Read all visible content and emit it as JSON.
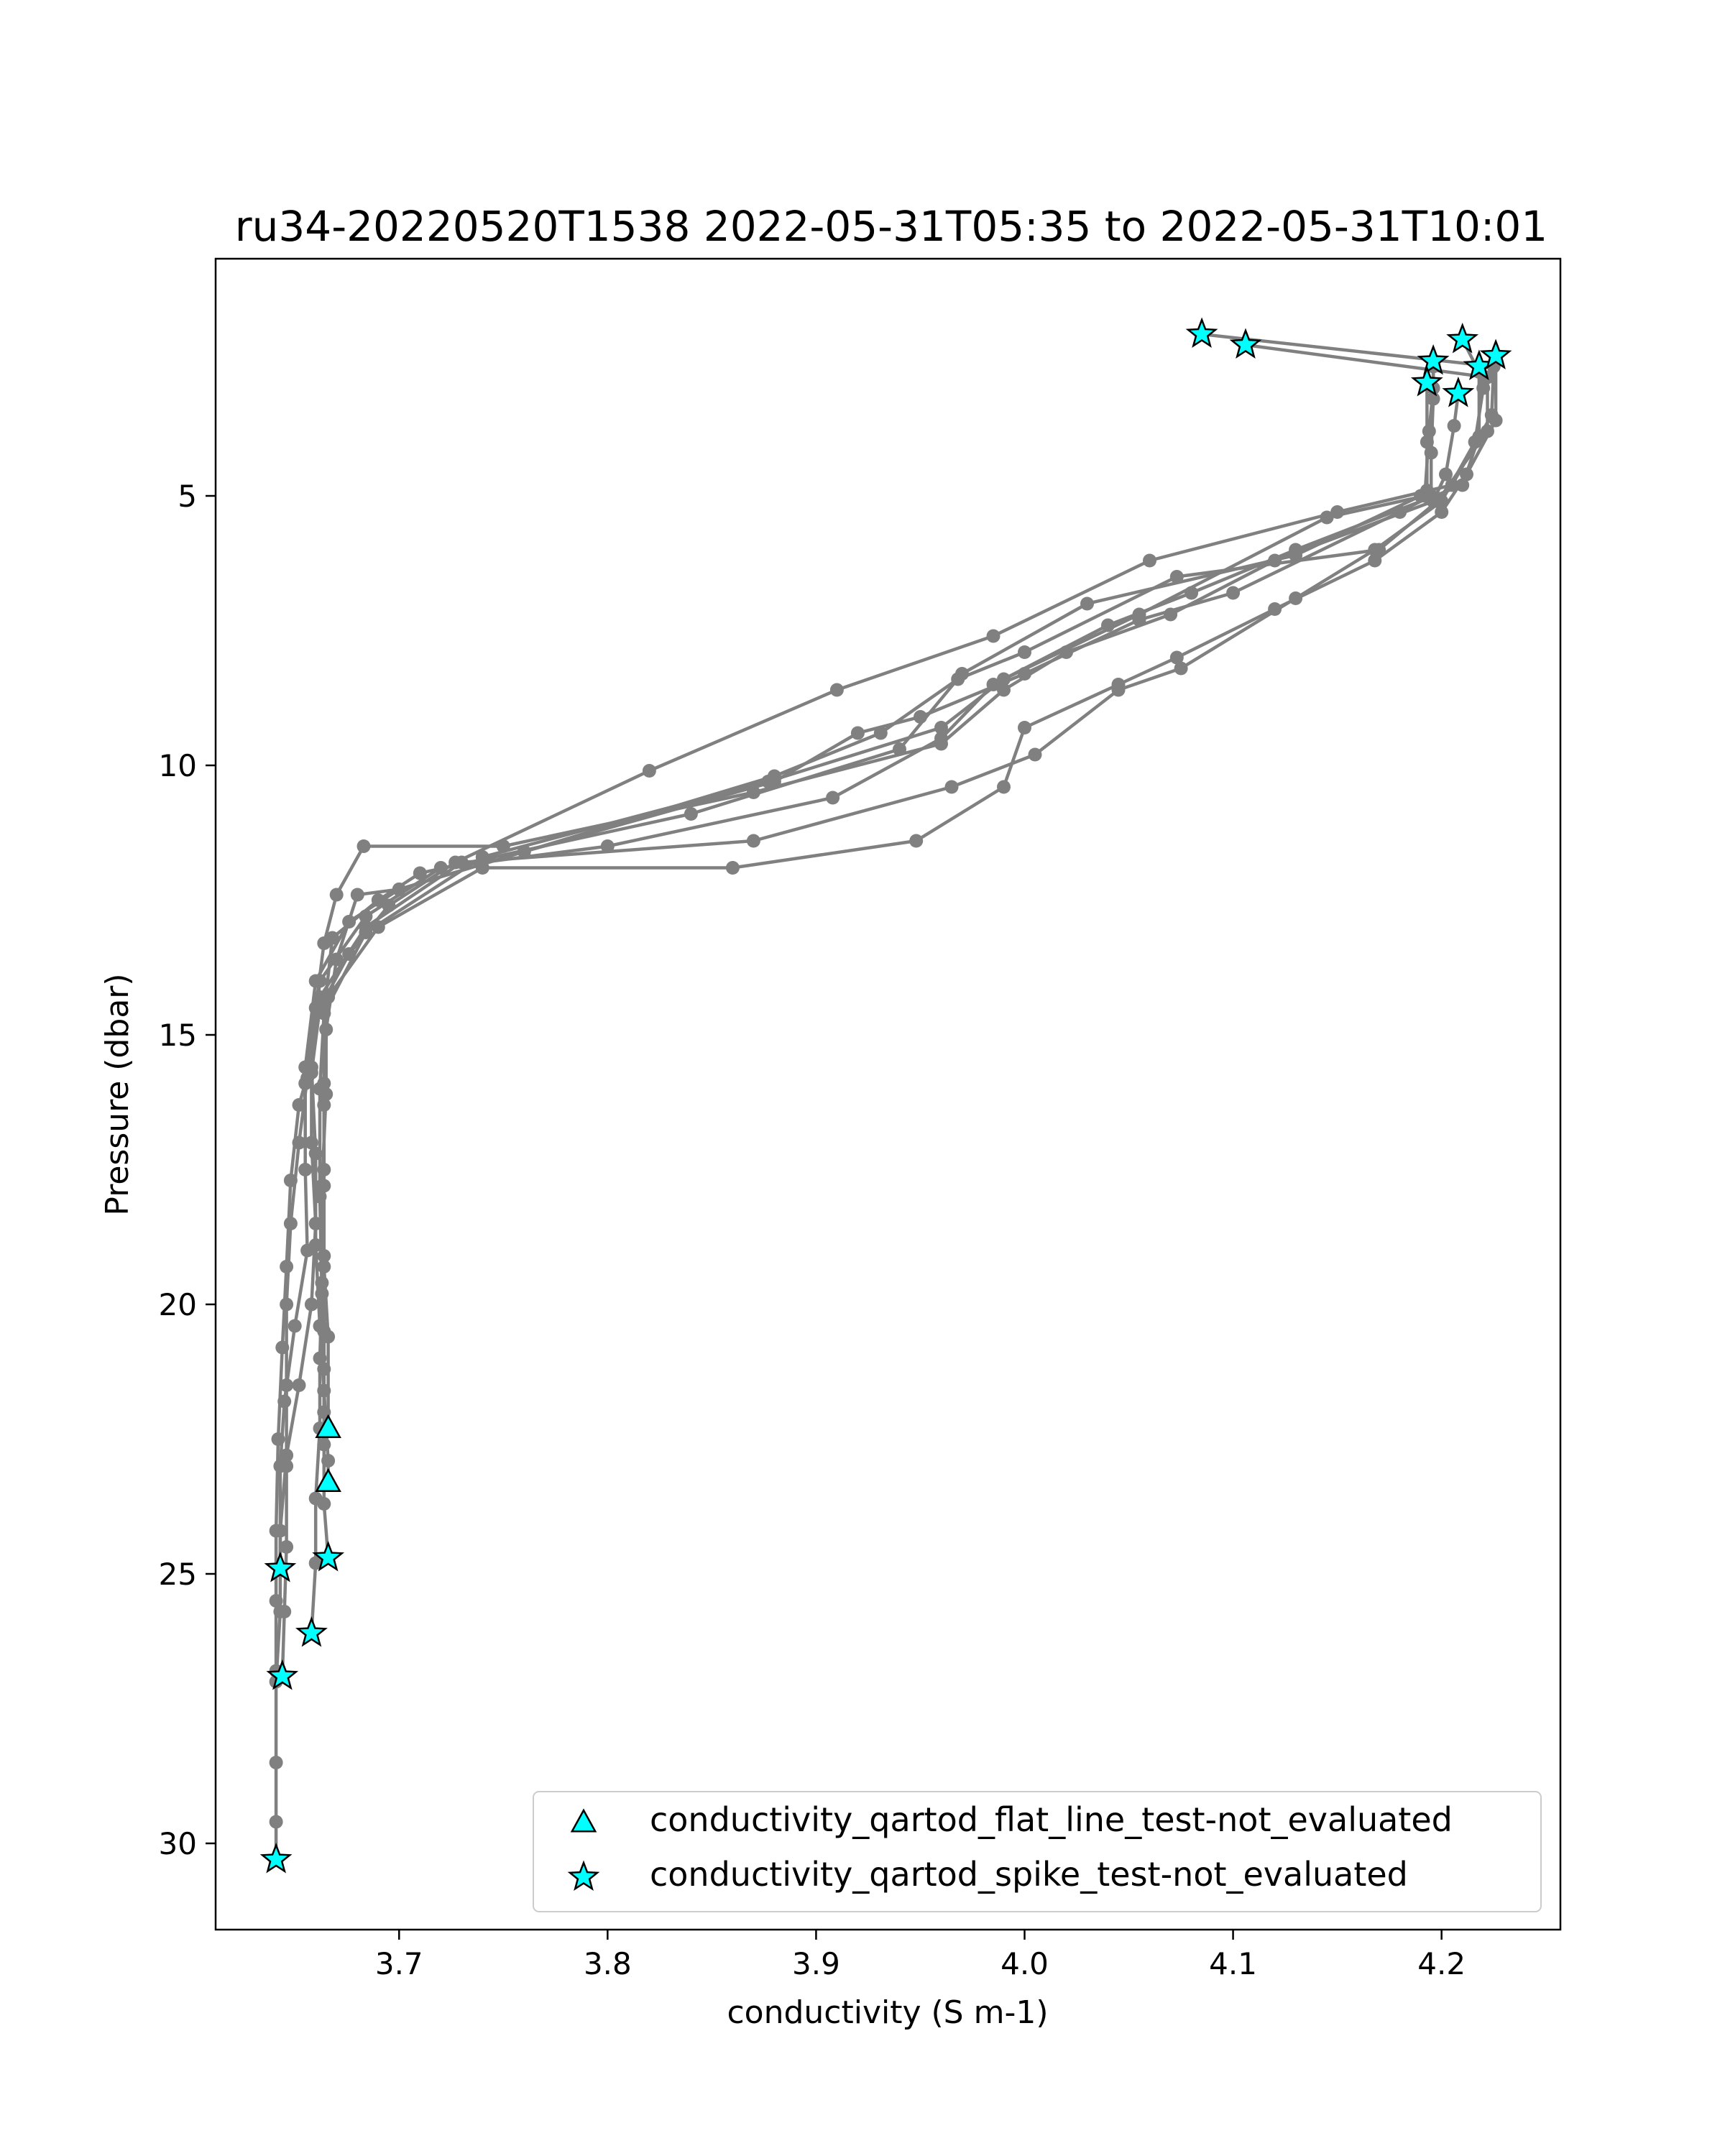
{
  "chart_data": {
    "type": "line",
    "title": "ru34-20220520T1538 2022-05-31T05:35 to 2022-05-31T10:01",
    "xlabel": "conductivity (S m-1)",
    "ylabel": "Pressure (dbar)",
    "xlim": [
      3.612,
      4.257
    ],
    "ylim": [
      31.6,
      0.6
    ],
    "y_inverted": true,
    "xticks": [
      3.7,
      3.8,
      3.9,
      4.0,
      4.1,
      4.2
    ],
    "xtick_labels": [
      "3.7",
      "3.8",
      "3.9",
      "4.0",
      "4.1",
      "4.2"
    ],
    "yticks": [
      5,
      10,
      15,
      20,
      25,
      30
    ],
    "ytick_labels": [
      "5",
      "10",
      "15",
      "20",
      "25",
      "30"
    ],
    "grid": false,
    "line_color": "#808080",
    "marker_color": "#00ffff",
    "series": [
      {
        "points": [
          [
            4.085,
            2.0
          ],
          [
            4.225,
            2.6
          ],
          [
            4.224,
            3.5
          ],
          [
            4.205,
            4.8
          ],
          [
            4.15,
            5.3
          ],
          [
            4.06,
            6.2
          ],
          [
            3.985,
            7.6
          ],
          [
            3.91,
            8.6
          ],
          [
            3.82,
            10.1
          ],
          [
            3.727,
            11.8
          ],
          [
            3.695,
            12.6
          ],
          [
            3.676,
            13.5
          ],
          [
            3.662,
            14.5
          ],
          [
            3.658,
            15.7
          ],
          [
            3.658,
            17.0
          ],
          [
            3.66,
            18.5
          ],
          [
            3.658,
            20.0
          ],
          [
            3.652,
            21.5
          ],
          [
            3.646,
            22.8
          ],
          [
            3.643,
            24.2
          ],
          [
            3.643,
            25.7
          ],
          [
            3.641,
            27.0
          ],
          [
            3.641,
            28.5
          ],
          [
            3.641,
            29.6
          ],
          [
            3.641,
            30.3
          ]
        ]
      },
      {
        "points": [
          [
            4.106,
            2.2
          ],
          [
            4.222,
            2.8
          ],
          [
            4.222,
            3.8
          ],
          [
            4.198,
            5.1
          ],
          [
            4.17,
            6.0
          ],
          [
            4.073,
            6.5
          ],
          [
            4.0,
            7.9
          ],
          [
            3.968,
            8.4
          ],
          [
            3.931,
            9.4
          ],
          [
            3.88,
            10.2
          ],
          [
            3.7,
            12.3
          ],
          [
            3.676,
            12.9
          ],
          [
            3.66,
            14.0
          ],
          [
            3.655,
            15.6
          ],
          [
            3.655,
            17.5
          ],
          [
            3.656,
            19.0
          ],
          [
            3.65,
            20.4
          ],
          [
            3.645,
            21.8
          ],
          [
            3.643,
            23.0
          ],
          [
            3.643,
            24.9
          ]
        ]
      },
      {
        "points": [
          [
            4.196,
            2.5
          ],
          [
            4.196,
            3.0
          ],
          [
            4.194,
            3.8
          ],
          [
            4.192,
            5.0
          ],
          [
            4.145,
            5.4
          ],
          [
            4.055,
            7.2
          ],
          [
            3.99,
            8.4
          ],
          [
            3.96,
            9.3
          ],
          [
            3.877,
            10.3
          ],
          [
            3.74,
            11.7
          ],
          [
            3.684,
            13.1
          ],
          [
            3.664,
            14.6
          ],
          [
            3.662,
            16.0
          ],
          [
            3.662,
            18.0
          ],
          [
            3.663,
            19.8
          ],
          [
            3.662,
            21.0
          ],
          [
            3.662,
            22.3
          ],
          [
            3.66,
            23.6
          ],
          [
            3.66,
            24.8
          ],
          [
            3.658,
            26.1
          ]
        ]
      },
      {
        "points": [
          [
            4.193,
            2.9
          ],
          [
            4.193,
            4.0
          ],
          [
            4.193,
            4.9
          ],
          [
            4.19,
            5.0
          ],
          [
            4.13,
            6.1
          ],
          [
            4.03,
            7.0
          ],
          [
            3.97,
            8.3
          ],
          [
            3.94,
            9.7
          ],
          [
            3.84,
            10.9
          ],
          [
            3.71,
            12.0
          ],
          [
            3.69,
            12.5
          ],
          [
            3.668,
            13.2
          ],
          [
            3.664,
            14.6
          ],
          [
            3.664,
            16.3
          ],
          [
            3.664,
            17.8
          ],
          [
            3.664,
            19.3
          ],
          [
            3.666,
            20.6
          ],
          [
            3.666,
            22.3
          ]
        ]
      },
      {
        "points": [
          [
            4.21,
            2.1
          ],
          [
            4.218,
            2.7
          ],
          [
            4.218,
            3.9
          ],
          [
            4.21,
            4.8
          ],
          [
            4.13,
            6.0
          ],
          [
            4.08,
            6.8
          ],
          [
            4.04,
            7.4
          ],
          [
            3.985,
            8.5
          ],
          [
            3.96,
            9.5
          ],
          [
            3.908,
            10.6
          ],
          [
            3.8,
            11.5
          ],
          [
            3.72,
            11.9
          ],
          [
            3.684,
            12.8
          ],
          [
            3.662,
            14.0
          ],
          [
            3.658,
            15.6
          ],
          [
            3.66,
            17.2
          ],
          [
            3.66,
            18.9
          ],
          [
            3.662,
            20.4
          ],
          [
            3.664,
            21.6
          ],
          [
            3.666,
            22.9
          ],
          [
            3.666,
            23.3
          ]
        ]
      },
      {
        "points": [
          [
            4.226,
            2.4
          ],
          [
            4.226,
            3.6
          ],
          [
            4.212,
            4.6
          ],
          [
            4.2,
            5.3
          ],
          [
            4.168,
            6.2
          ],
          [
            4.12,
            7.1
          ],
          [
            4.073,
            8.0
          ],
          [
            4.045,
            8.5
          ],
          [
            4.0,
            9.3
          ],
          [
            3.99,
            10.4
          ],
          [
            3.948,
            11.4
          ],
          [
            3.86,
            11.9
          ],
          [
            3.74,
            11.9
          ],
          [
            3.69,
            13.0
          ],
          [
            3.666,
            14.3
          ],
          [
            3.664,
            15.9
          ],
          [
            3.664,
            17.5
          ],
          [
            3.664,
            19.1
          ],
          [
            3.664,
            20.5
          ],
          [
            3.664,
            22.0
          ],
          [
            3.664,
            23.7
          ],
          [
            3.666,
            24.7
          ]
        ]
      },
      {
        "points": [
          [
            4.218,
            2.6
          ],
          [
            4.22,
            3.0
          ],
          [
            4.216,
            4.0
          ],
          [
            4.2,
            5.1
          ],
          [
            4.168,
            6.0
          ],
          [
            4.13,
            6.9
          ],
          [
            4.075,
            8.2
          ],
          [
            4.045,
            8.6
          ],
          [
            4.005,
            9.8
          ],
          [
            3.965,
            10.4
          ],
          [
            3.87,
            11.4
          ],
          [
            3.73,
            11.8
          ],
          [
            3.684,
            13.0
          ],
          [
            3.662,
            14.3
          ],
          [
            3.656,
            15.8
          ],
          [
            3.652,
            17.0
          ],
          [
            3.648,
            18.5
          ],
          [
            3.646,
            20.0
          ],
          [
            3.646,
            21.5
          ],
          [
            3.646,
            23.0
          ],
          [
            3.646,
            24.5
          ],
          [
            3.645,
            25.7
          ],
          [
            3.644,
            26.9
          ]
        ]
      },
      {
        "points": [
          [
            4.208,
            3.1
          ],
          [
            4.206,
            3.7
          ],
          [
            4.202,
            4.6
          ],
          [
            4.196,
            5.1
          ],
          [
            4.12,
            6.2
          ],
          [
            4.07,
            7.2
          ],
          [
            4.02,
            7.9
          ],
          [
            3.99,
            8.6
          ],
          [
            3.96,
            9.6
          ],
          [
            3.87,
            10.5
          ],
          [
            3.75,
            11.5
          ],
          [
            3.683,
            11.5
          ],
          [
            3.67,
            12.4
          ],
          [
            3.664,
            13.3
          ],
          [
            3.66,
            14.5
          ],
          [
            3.655,
            15.9
          ],
          [
            3.652,
            16.3
          ],
          [
            3.648,
            17.7
          ],
          [
            3.646,
            19.3
          ],
          [
            3.644,
            20.8
          ],
          [
            3.642,
            22.5
          ],
          [
            3.641,
            24.2
          ],
          [
            3.641,
            25.5
          ],
          [
            3.641,
            26.8
          ]
        ]
      },
      {
        "points": [
          [
            4.196,
            2.6
          ],
          [
            4.196,
            3.2
          ],
          [
            4.195,
            4.2
          ],
          [
            4.195,
            5.0
          ],
          [
            4.18,
            5.3
          ],
          [
            4.1,
            6.8
          ],
          [
            4.055,
            7.3
          ],
          [
            4.0,
            8.3
          ],
          [
            3.95,
            9.1
          ],
          [
            3.92,
            9.4
          ],
          [
            3.88,
            10.3
          ],
          [
            3.76,
            11.6
          ],
          [
            3.7,
            12.3
          ],
          [
            3.68,
            12.4
          ],
          [
            3.67,
            13.6
          ],
          [
            3.665,
            14.9
          ],
          [
            3.665,
            16.1
          ],
          [
            3.663,
            17.8
          ],
          [
            3.663,
            19.6
          ],
          [
            3.664,
            21.2
          ],
          [
            3.664,
            22.6
          ]
        ]
      }
    ],
    "marked_points": {
      "flat_line": [
        [
          3.666,
          22.3
        ],
        [
          3.666,
          23.3
        ]
      ],
      "spike": [
        [
          4.085,
          2.0
        ],
        [
          4.106,
          2.2
        ],
        [
          4.21,
          2.1
        ],
        [
          4.196,
          2.5
        ],
        [
          4.218,
          2.6
        ],
        [
          4.226,
          2.4
        ],
        [
          4.193,
          2.9
        ],
        [
          4.208,
          3.1
        ],
        [
          3.666,
          24.7
        ],
        [
          3.643,
          24.9
        ],
        [
          3.658,
          26.1
        ],
        [
          3.644,
          26.9
        ],
        [
          3.641,
          30.3
        ]
      ]
    },
    "legend": {
      "position": "lower-right",
      "entries": [
        {
          "marker": "triangle",
          "label": "conductivity_qartod_flat_line_test-not_evaluated"
        },
        {
          "marker": "star",
          "label": "conductivity_qartod_spike_test-not_evaluated"
        }
      ]
    }
  }
}
